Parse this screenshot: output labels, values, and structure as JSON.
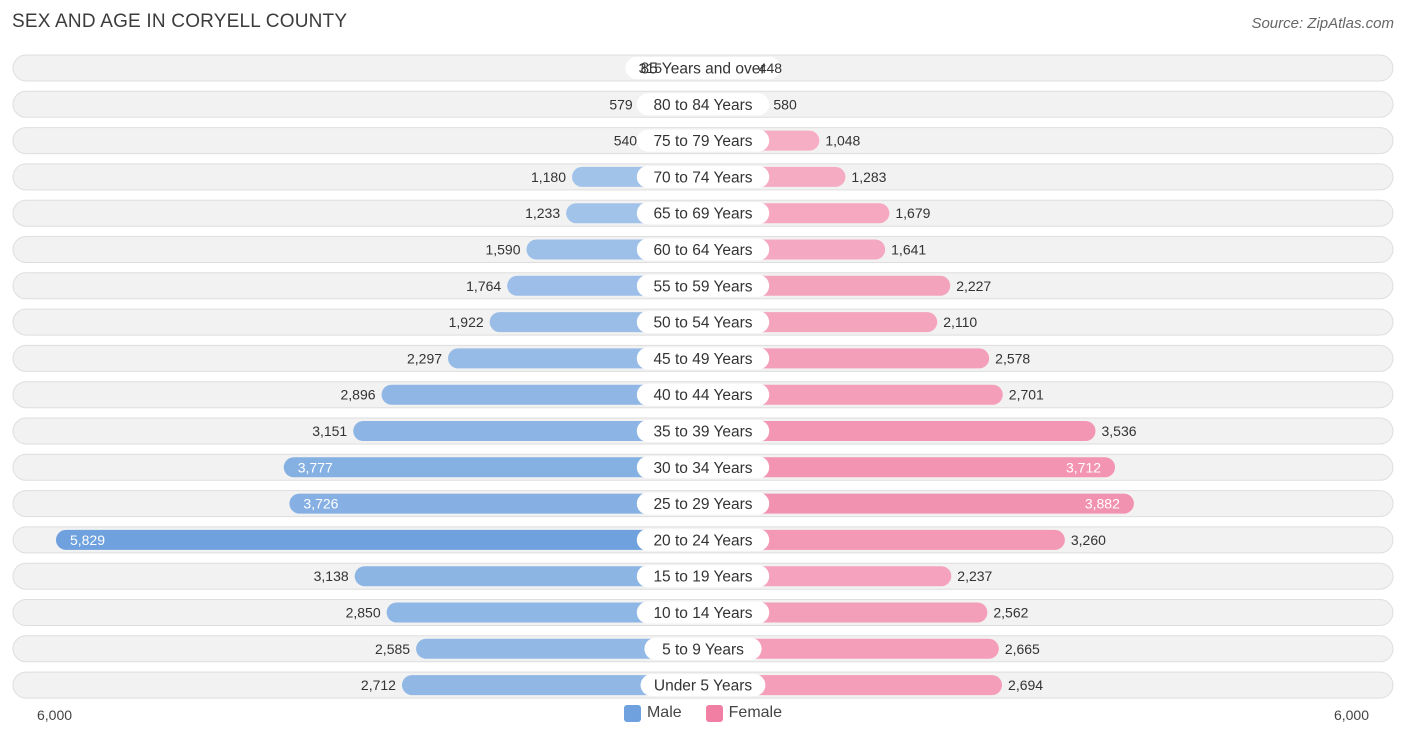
{
  "header": {
    "title": "SEX AND AGE IN CORYELL COUNTY",
    "source": "Source: ZipAtlas.com"
  },
  "colors": {
    "male": "#6ea1dd",
    "male_strong": "#5b93d8",
    "female": "#f07fa3",
    "female_strong": "#ef5f8d",
    "row_bg": "#f2f2f2",
    "row_border": "#dedede"
  },
  "chart_data": {
    "type": "bar",
    "orientation": "horizontal-diverging",
    "title": "SEX AND AGE IN CORYELL COUNTY",
    "categories": [
      "85 Years and over",
      "80 to 84 Years",
      "75 to 79 Years",
      "70 to 74 Years",
      "65 to 69 Years",
      "60 to 64 Years",
      "55 to 59 Years",
      "50 to 54 Years",
      "45 to 49 Years",
      "40 to 44 Years",
      "35 to 39 Years",
      "30 to 34 Years",
      "25 to 29 Years",
      "20 to 24 Years",
      "15 to 19 Years",
      "10 to 14 Years",
      "5 to 9 Years",
      "Under 5 Years"
    ],
    "series": [
      {
        "name": "Male",
        "values": [
          315,
          579,
          540,
          1180,
          1233,
          1590,
          1764,
          1922,
          2297,
          2896,
          3151,
          3777,
          3726,
          5829,
          3138,
          2850,
          2585,
          2712
        ],
        "labels": [
          "315",
          "579",
          "540",
          "1,180",
          "1,233",
          "1,590",
          "1,764",
          "1,922",
          "2,297",
          "2,896",
          "3,151",
          "3,777",
          "3,726",
          "5,829",
          "3,138",
          "2,850",
          "2,585",
          "2,712"
        ]
      },
      {
        "name": "Female",
        "values": [
          448,
          580,
          1048,
          1283,
          1679,
          1641,
          2227,
          2110,
          2578,
          2701,
          3536,
          3712,
          3882,
          3260,
          2237,
          2562,
          2665,
          2694
        ],
        "labels": [
          "448",
          "580",
          "1,048",
          "1,283",
          "1,679",
          "1,641",
          "2,227",
          "2,110",
          "2,578",
          "2,701",
          "3,536",
          "3,712",
          "3,882",
          "3,260",
          "2,237",
          "2,562",
          "2,665",
          "2,694"
        ]
      }
    ],
    "xlim": [
      -6000,
      6000
    ],
    "axis_labels": {
      "left": "6,000",
      "right": "6,000"
    },
    "legend": {
      "position": "bottom-center",
      "male_label": "Male",
      "female_label": "Female"
    }
  }
}
